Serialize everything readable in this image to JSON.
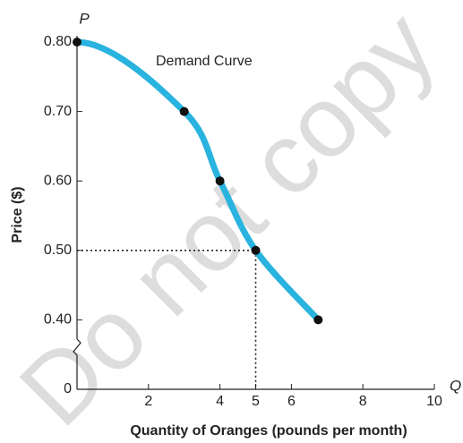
{
  "chart_data": {
    "type": "line",
    "watermark": "Do not copy",
    "x_axis_label": "Quantity of Oranges (pounds per month)",
    "y_axis_label": "Price ($)",
    "x_axis_symbol": "Q",
    "y_axis_symbol": "P",
    "x": [
      0,
      3,
      4,
      5,
      6.75
    ],
    "series": [
      {
        "name": "Demand Curve",
        "color": "#29b3df",
        "values": [
          0.8,
          0.7,
          0.6,
          0.5,
          0.4
        ]
      }
    ],
    "xlim": [
      0,
      10
    ],
    "xticks": [
      2,
      4,
      5,
      6,
      8,
      10
    ],
    "ylim": [
      0,
      0.8
    ],
    "yticks": [
      {
        "value": 0,
        "label": "0"
      },
      {
        "value": 0.4,
        "label": "0.40"
      },
      {
        "value": 0.5,
        "label": "0.50"
      },
      {
        "value": 0.6,
        "label": "0.60"
      },
      {
        "value": 0.7,
        "label": "0.70"
      },
      {
        "value": 0.8,
        "label": "0.80"
      }
    ],
    "y_axis_break": true,
    "reference_lines": [
      {
        "x": 5,
        "y": 0.5
      }
    ]
  }
}
